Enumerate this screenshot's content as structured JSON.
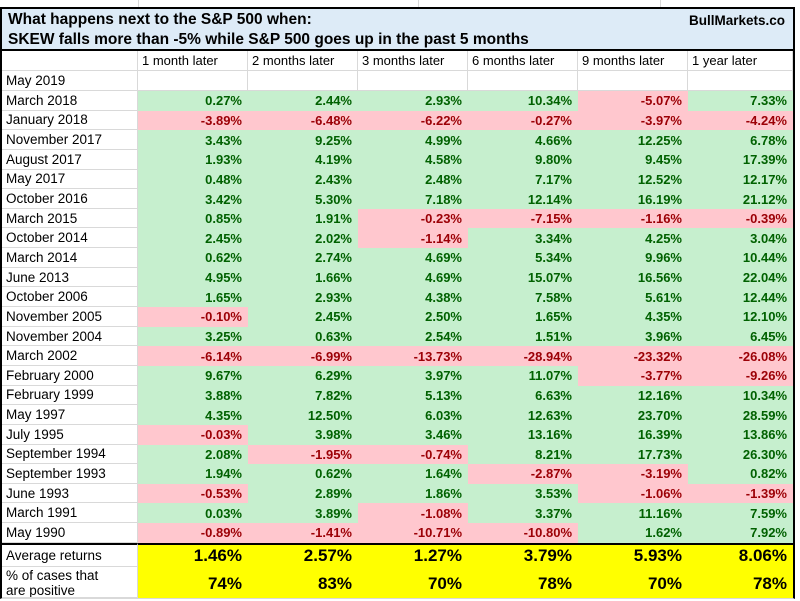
{
  "brand": "BullMarkets.co",
  "title": {
    "line1": "What happens next to the S&P 500 when:",
    "line2": "SKEW falls more than -5% while S&P 500 goes up in the past 5 months"
  },
  "summary": {
    "average_label": "Average returns",
    "positive_label": "% of cases that are positive"
  },
  "colors": {
    "positive_bg": "#C6EFCE",
    "positive_text": "#006100",
    "negative_bg": "#FFC7CE",
    "negative_text": "#9C0006",
    "header_bg": "#DDEBF7",
    "summary_bg": "#FFFF00",
    "grid_line": "#D9D9D9"
  },
  "chart_data": {
    "type": "table",
    "title": "What happens next to the S&P 500 when: SKEW falls more than -5% while S&P 500 goes up in the past 5 months",
    "value_unit": "%",
    "columns": [
      "1 month later",
      "2 months later",
      "3 months later",
      "6 months later",
      "9 months later",
      "1 year later"
    ],
    "rows": [
      {
        "label": "May 2019",
        "values": [
          null,
          null,
          null,
          null,
          null,
          null
        ]
      },
      {
        "label": "March 2018",
        "values": [
          0.27,
          2.44,
          2.93,
          10.34,
          -5.07,
          7.33
        ]
      },
      {
        "label": "January 2018",
        "values": [
          -3.89,
          -6.48,
          -6.22,
          -0.27,
          -3.97,
          -4.24
        ]
      },
      {
        "label": "November 2017",
        "values": [
          3.43,
          9.25,
          4.99,
          4.66,
          12.25,
          6.78
        ]
      },
      {
        "label": "August 2017",
        "values": [
          1.93,
          4.19,
          4.58,
          9.8,
          9.45,
          17.39
        ]
      },
      {
        "label": "May 2017",
        "values": [
          0.48,
          2.43,
          2.48,
          7.17,
          12.52,
          12.17
        ]
      },
      {
        "label": "October 2016",
        "values": [
          3.42,
          5.3,
          7.18,
          12.14,
          16.19,
          21.12
        ]
      },
      {
        "label": "March 2015",
        "values": [
          0.85,
          1.91,
          -0.23,
          -7.15,
          -1.16,
          -0.39
        ]
      },
      {
        "label": "October 2014",
        "values": [
          2.45,
          2.02,
          -1.14,
          3.34,
          4.25,
          3.04
        ]
      },
      {
        "label": "March 2014",
        "values": [
          0.62,
          2.74,
          4.69,
          5.34,
          9.96,
          10.44
        ]
      },
      {
        "label": "June 2013",
        "values": [
          4.95,
          1.66,
          4.69,
          15.07,
          16.56,
          22.04
        ]
      },
      {
        "label": "October 2006",
        "values": [
          1.65,
          2.93,
          4.38,
          7.58,
          5.61,
          12.44
        ]
      },
      {
        "label": "November 2005",
        "values": [
          -0.1,
          2.45,
          2.5,
          1.65,
          4.35,
          12.1
        ]
      },
      {
        "label": "November 2004",
        "values": [
          3.25,
          0.63,
          2.54,
          1.51,
          3.96,
          6.45
        ]
      },
      {
        "label": "March 2002",
        "values": [
          -6.14,
          -6.99,
          -13.73,
          -28.94,
          -23.32,
          -26.08
        ]
      },
      {
        "label": "February 2000",
        "values": [
          9.67,
          6.29,
          3.97,
          11.07,
          -3.77,
          -9.26
        ]
      },
      {
        "label": "February 1999",
        "values": [
          3.88,
          7.82,
          5.13,
          6.63,
          12.16,
          10.34
        ]
      },
      {
        "label": "May 1997",
        "values": [
          4.35,
          12.5,
          6.03,
          12.63,
          23.7,
          28.59
        ]
      },
      {
        "label": "July 1995",
        "values": [
          -0.03,
          3.98,
          3.46,
          13.16,
          16.39,
          13.86
        ]
      },
      {
        "label": "September 1994",
        "values": [
          2.08,
          -1.95,
          -0.74,
          8.21,
          17.73,
          26.3
        ]
      },
      {
        "label": "September 1993",
        "values": [
          1.94,
          0.62,
          1.64,
          -2.87,
          -3.19,
          0.82
        ]
      },
      {
        "label": "June 1993",
        "values": [
          -0.53,
          2.89,
          1.86,
          3.53,
          -1.06,
          -1.39
        ]
      },
      {
        "label": "March 1991",
        "values": [
          0.03,
          3.89,
          -1.08,
          3.37,
          11.16,
          7.59
        ]
      },
      {
        "label": "May 1990",
        "values": [
          -0.89,
          -1.41,
          -10.71,
          -10.8,
          1.62,
          7.92
        ]
      }
    ],
    "average_returns": [
      1.46,
      2.57,
      1.27,
      3.79,
      5.93,
      8.06
    ],
    "percent_positive": [
      74,
      83,
      70,
      78,
      70,
      78
    ]
  }
}
